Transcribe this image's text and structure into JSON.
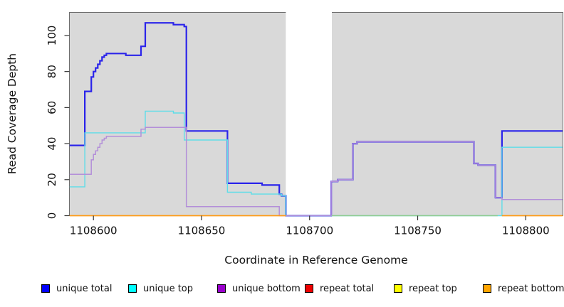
{
  "figure": {
    "background_color": "#ffffff",
    "plot_background_color": "#d9d9d9",
    "plot_border_color": "#6e6e6e",
    "masked_region_color": "#ffffff"
  },
  "legend": {
    "items": [
      {
        "label": "unique total",
        "color": "#0000ff"
      },
      {
        "label": "unique top",
        "color": "#00ffff"
      },
      {
        "label": "unique bottom",
        "color": "#9900cc"
      },
      {
        "label": "repeat total",
        "color": "#ee0000"
      },
      {
        "label": "repeat top",
        "color": "#ffff00"
      },
      {
        "label": "repeat bottom",
        "color": "#ffa500"
      }
    ]
  },
  "chart_data": {
    "type": "line",
    "subtype": "step-after-coverage-plot",
    "title": "",
    "xlabel": "Coordinate in Reference Genome",
    "ylabel": "Read Coverage Depth",
    "xlim": [
      1108588.9,
      1108817.2
    ],
    "ylim": [
      0,
      112.8
    ],
    "grid": false,
    "legend_position": "bottom",
    "x_ticks": {
      "values": [
        1108600,
        1108650,
        1108700,
        1108750,
        1108800
      ],
      "labels": [
        "1108600",
        "1108650",
        "1108700",
        "1108750",
        "1108800"
      ]
    },
    "y_ticks": {
      "values": [
        0,
        20,
        40,
        60,
        80,
        100
      ],
      "labels": [
        "0",
        "20",
        "40",
        "60",
        "80",
        "100"
      ]
    },
    "masked_gap_region": {
      "from": 1108689,
      "to": 1108710.3
    },
    "series": [
      {
        "name": "unique total",
        "line_color": "#2b24ea",
        "line_width": 2.2,
        "segments": [
          [
            [
              1108589,
              39
            ],
            [
              1108596,
              69
            ],
            [
              1108599,
              77
            ],
            [
              1108600,
              80
            ],
            [
              1108601,
              82
            ],
            [
              1108602,
              84
            ],
            [
              1108603,
              86
            ],
            [
              1108604,
              88
            ],
            [
              1108605,
              89
            ],
            [
              1108606,
              90
            ],
            [
              1108615,
              89
            ],
            [
              1108622,
              94
            ],
            [
              1108624,
              107
            ],
            [
              1108637,
              106
            ],
            [
              1108642,
              105
            ],
            [
              1108643,
              47
            ],
            [
              1108662,
              18
            ],
            [
              1108678,
              17
            ],
            [
              1108686,
              12
            ],
            [
              1108687,
              11
            ],
            [
              1108689,
              0
            ],
            [
              1108710,
              19
            ],
            [
              1108713,
              20
            ],
            [
              1108720,
              40
            ],
            [
              1108722,
              41
            ],
            [
              1108776,
              29
            ],
            [
              1108778,
              28
            ],
            [
              1108786,
              10
            ],
            [
              1108789,
              47
            ],
            [
              1108817,
              47
            ]
          ]
        ]
      },
      {
        "name": "unique top",
        "line_color": "#5fdde8",
        "line_width": 1.4,
        "segments": [
          [
            [
              1108589,
              16
            ],
            [
              1108596,
              46
            ],
            [
              1108624,
              58
            ],
            [
              1108637,
              57
            ],
            [
              1108642,
              42
            ],
            [
              1108662,
              13
            ],
            [
              1108673,
              12
            ],
            [
              1108687,
              11
            ],
            [
              1108689,
              0
            ],
            [
              1108789,
              38
            ],
            [
              1108817,
              38
            ]
          ]
        ]
      },
      {
        "name": "unique bottom",
        "line_color": "#b38fd9",
        "line_width": 1.5,
        "segments": [
          [
            [
              1108589,
              23
            ],
            [
              1108599,
              31
            ],
            [
              1108600,
              34
            ],
            [
              1108601,
              36
            ],
            [
              1108602,
              38
            ],
            [
              1108603,
              40
            ],
            [
              1108604,
              42
            ],
            [
              1108605,
              43
            ],
            [
              1108606,
              44
            ],
            [
              1108622,
              48
            ],
            [
              1108624,
              49
            ],
            [
              1108643,
              5
            ],
            [
              1108686,
              0
            ],
            [
              1108710,
              19
            ],
            [
              1108713,
              20
            ],
            [
              1108720,
              40
            ],
            [
              1108722,
              41
            ],
            [
              1108776,
              29
            ],
            [
              1108778,
              28
            ],
            [
              1108786,
              10
            ],
            [
              1108789,
              9
            ],
            [
              1108817,
              9
            ]
          ]
        ]
      },
      {
        "name": "repeat total",
        "line_color": "#ee2222",
        "line_width": 1.2,
        "segments": [
          [
            [
              1108589,
              0
            ],
            [
              1108689,
              0
            ]
          ],
          [
            [
              1108789,
              0
            ],
            [
              1108817,
              0
            ]
          ]
        ]
      },
      {
        "name": "repeat top",
        "line_color": "#ffee00",
        "line_width": 1.2,
        "segments": [
          [
            [
              1108589,
              0
            ],
            [
              1108689,
              0
            ]
          ],
          [
            [
              1108789,
              0
            ],
            [
              1108817,
              0
            ]
          ]
        ]
      },
      {
        "name": "repeat bottom",
        "line_color": "#ff9c17",
        "line_width": 1.6,
        "segments": [
          [
            [
              1108589,
              0
            ],
            [
              1108689,
              0
            ]
          ],
          [
            [
              1108789,
              0
            ],
            [
              1108817,
              0
            ]
          ]
        ]
      }
    ],
    "overlap_artifacts": [
      {
        "note": "blend of overlapping zero-value top-strand lines rendered green in source image",
        "color": "#90cc90",
        "line_width": 1.4,
        "points": [
          [
            1108710.3,
            0
          ],
          [
            1108787,
            0
          ]
        ]
      }
    ]
  }
}
